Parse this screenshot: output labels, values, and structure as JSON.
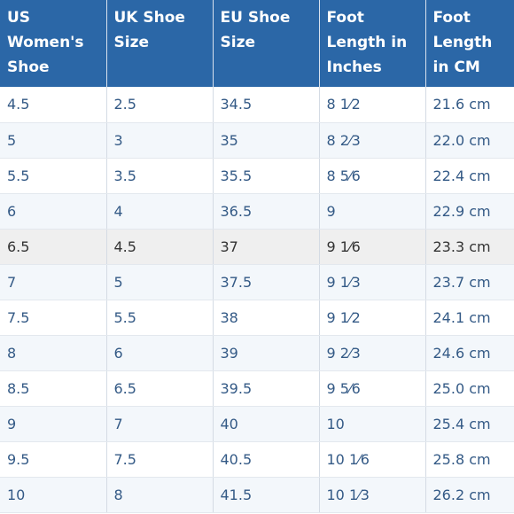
{
  "table": {
    "headers": [
      "US Women's Shoe",
      "UK Shoe Size",
      "EU Shoe Size",
      "Foot Length in Inches",
      "Foot Length in CM"
    ],
    "rows": [
      [
        "4.5",
        "2.5",
        "34.5",
        "8 1⁄2",
        "21.6 cm"
      ],
      [
        "5",
        "3",
        "35",
        "8 2⁄3",
        "22.0 cm"
      ],
      [
        "5.5",
        "3.5",
        "35.5",
        "8 5⁄6",
        "22.4 cm"
      ],
      [
        "6",
        "4",
        "36.5",
        "9",
        "22.9 cm"
      ],
      [
        "6.5",
        "4.5",
        "37",
        "9 1⁄6",
        "23.3 cm"
      ],
      [
        "7",
        "5",
        "37.5",
        "9 1⁄3",
        "23.7 cm"
      ],
      [
        "7.5",
        "5.5",
        "38",
        "9 1⁄2",
        "24.1 cm"
      ],
      [
        "8",
        "6",
        "39",
        "9 2⁄3",
        "24.6 cm"
      ],
      [
        "8.5",
        "6.5",
        "39.5",
        "9 5⁄6",
        "25.0 cm"
      ],
      [
        "9",
        "7",
        "40",
        "10",
        "25.4 cm"
      ],
      [
        "9.5",
        "7.5",
        "40.5",
        "10 1⁄6",
        "25.8 cm"
      ],
      [
        "10",
        "8",
        "41.5",
        "10 1⁄3",
        "26.2 cm"
      ]
    ]
  },
  "colors": {
    "header_bg": "#2b67a7",
    "header_text": "#ffffff",
    "cell_text": "#345a86",
    "row_alt_bg": "#f3f7fb",
    "row_highlight_bg": "#efefef"
  }
}
